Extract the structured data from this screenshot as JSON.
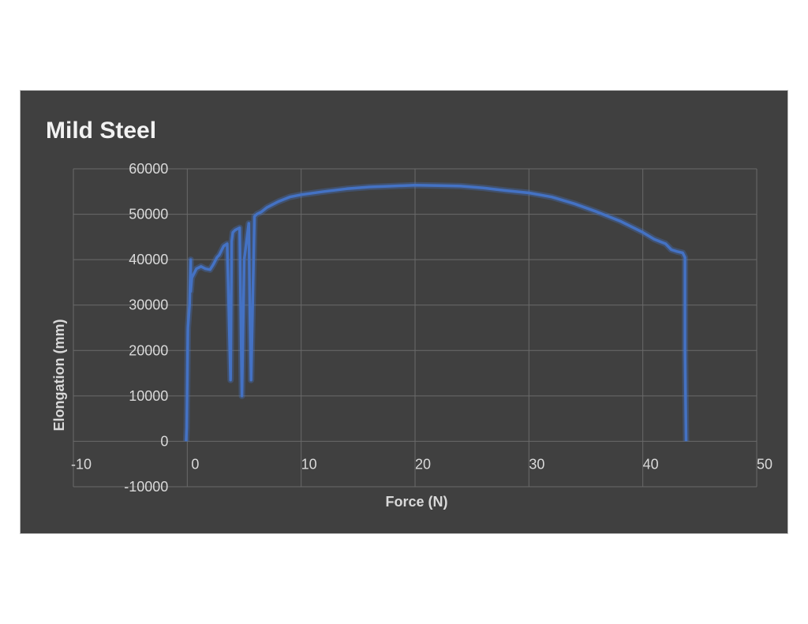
{
  "chart_data": {
    "type": "scatter",
    "title": "Mild Steel",
    "xlabel": "Force (N)",
    "ylabel": "Elongation (mm)",
    "xlim": [
      -10,
      50
    ],
    "ylim": [
      -10000,
      60000
    ],
    "x_ticks": [
      -10,
      0,
      10,
      20,
      30,
      40,
      50
    ],
    "y_ticks": [
      -10000,
      0,
      10000,
      20000,
      30000,
      40000,
      50000,
      60000
    ],
    "x_tick_labels": [
      "-10",
      "0",
      "10",
      "20",
      "30",
      "40",
      "50"
    ],
    "y_tick_labels": [
      "-10000",
      "0",
      "10000",
      "20000",
      "30000",
      "40000",
      "50000",
      "60000"
    ],
    "grid": true,
    "line_color": "#4472C4",
    "series": [
      {
        "x": [
          -0.1,
          -0.05,
          0.05,
          0.2,
          0.3,
          0.3,
          0.4,
          0.8,
          1.2,
          1.6,
          2.0,
          2.3,
          2.6,
          2.8,
          3.2,
          3.5,
          3.8,
          3.9,
          4.0,
          4.2,
          4.6,
          4.8,
          5.0,
          5.4,
          5.5,
          5.6,
          5.9,
          6.1,
          6.5,
          7,
          8,
          9,
          10,
          12,
          14,
          16,
          18,
          20,
          22,
          24,
          26,
          28,
          30,
          32,
          34,
          36,
          38,
          40,
          41,
          42,
          42.5,
          43,
          43.5,
          43.7,
          43.7,
          43.8
        ],
        "y": [
          0,
          3000,
          25000,
          30000,
          40000,
          33000,
          36000,
          38000,
          38500,
          38000,
          37800,
          39000,
          40500,
          41000,
          43000,
          43500,
          13500,
          44000,
          46000,
          46500,
          47000,
          10000,
          40000,
          48000,
          28000,
          13500,
          49500,
          50000,
          50500,
          51500,
          52800,
          53800,
          54300,
          55000,
          55600,
          56000,
          56200,
          56400,
          56300,
          56200,
          55800,
          55200,
          54700,
          53800,
          52300,
          50500,
          48500,
          46000,
          44500,
          43500,
          42200,
          41800,
          41500,
          40500,
          20000,
          0
        ]
      }
    ]
  }
}
